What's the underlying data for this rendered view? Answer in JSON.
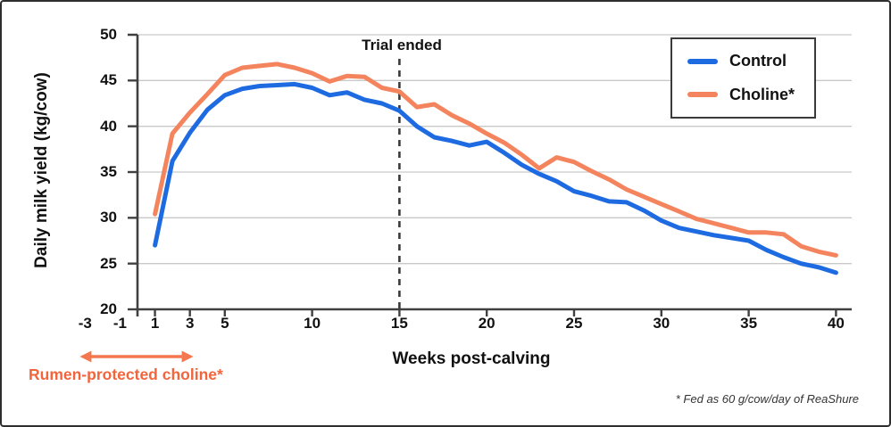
{
  "figure": {
    "footnote": "* Fed as 60 g/cow/day of ReaShure"
  },
  "style_colors": {
    "grid": "#c9c9c9",
    "axis": "#404040",
    "text": "#111111"
  },
  "chart_data": {
    "type": "line",
    "title": "",
    "xlabel": "Weeks post-calving",
    "ylabel": "Daily milk yield (kg/cow)",
    "ylim": [
      20,
      50
    ],
    "xlim": [
      0,
      40.9
    ],
    "y_ticks": [
      20,
      25,
      30,
      35,
      40,
      45,
      50
    ],
    "x_tick_labels": [
      -3,
      -1,
      1,
      3,
      5,
      10,
      15,
      20,
      25,
      30,
      35,
      40
    ],
    "x_ticks_with_marks": [
      1,
      3,
      5,
      10,
      15,
      20,
      25,
      30,
      35,
      40
    ],
    "grid": "horizontal",
    "legend_position": "top-right",
    "x": [
      1,
      2,
      3,
      4,
      5,
      6,
      7,
      8,
      9,
      10,
      11,
      12,
      13,
      14,
      15,
      16,
      17,
      18,
      19,
      20,
      21,
      22,
      23,
      24,
      25,
      26,
      27,
      28,
      29,
      30,
      31,
      32,
      33,
      34,
      35,
      36,
      37,
      38,
      39,
      40
    ],
    "series": [
      {
        "name": "Control",
        "color": "#1e6be1",
        "values": [
          27.0,
          36.2,
          39.3,
          41.8,
          43.4,
          44.1,
          44.4,
          44.5,
          44.6,
          44.2,
          43.4,
          43.7,
          42.9,
          42.5,
          41.7,
          40.0,
          38.8,
          38.4,
          37.9,
          38.3,
          37.1,
          35.8,
          34.8,
          34.0,
          32.9,
          32.4,
          31.8,
          31.7,
          30.8,
          29.7,
          28.9,
          28.5,
          28.1,
          27.8,
          27.5,
          26.5,
          25.7,
          25.0,
          24.6,
          24.0
        ]
      },
      {
        "name": "Choline*",
        "color": "#f4845e",
        "values": [
          30.4,
          39.2,
          41.5,
          43.5,
          45.6,
          46.4,
          46.6,
          46.8,
          46.4,
          45.8,
          44.9,
          45.5,
          45.4,
          44.2,
          43.8,
          42.1,
          42.4,
          41.2,
          40.3,
          39.2,
          38.2,
          36.9,
          35.4,
          36.6,
          36.1,
          35.1,
          34.2,
          33.1,
          32.3,
          31.5,
          30.7,
          29.9,
          29.4,
          28.9,
          28.4,
          28.4,
          28.2,
          26.9,
          26.3,
          25.9
        ]
      }
    ],
    "vline": {
      "x": 15,
      "label": "Trial ended",
      "style": "dashed",
      "color": "#3a3a3a"
    },
    "annotations": [
      {
        "text": "Rumen-protected choline*",
        "color": "#f2643c",
        "arrow_color": "#f4774f",
        "arrow_span_x": [
          -3.3,
          3.2
        ]
      }
    ]
  }
}
